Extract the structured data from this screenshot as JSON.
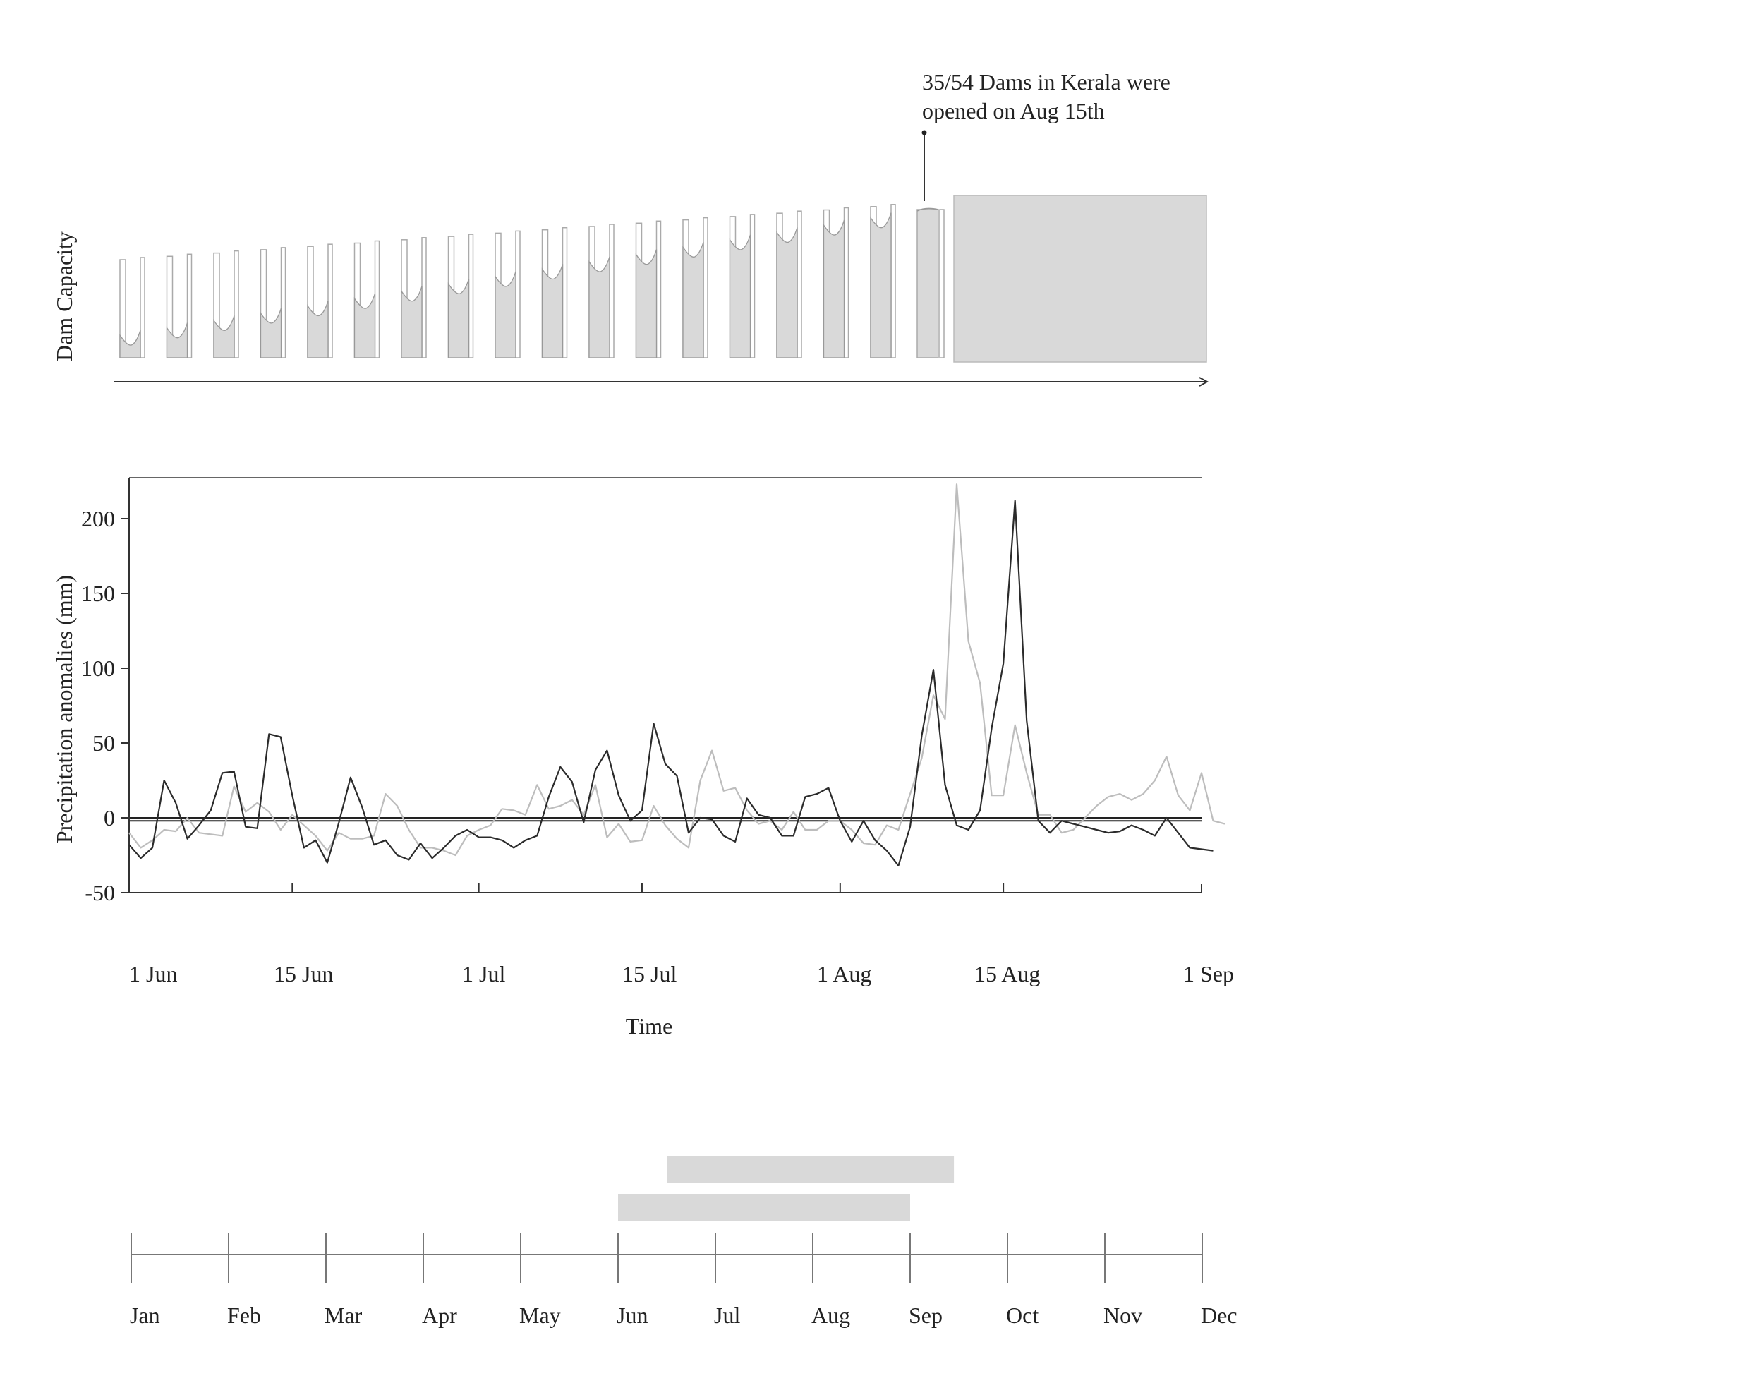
{
  "annotation": {
    "line1": "35/54 Dams in Kerala were",
    "line2": "opened on Aug 15th"
  },
  "dam_panel": {
    "ylabel": "Dam Capacity",
    "fill_color": "#d9d9d9"
  },
  "chart_data": [
    {
      "type": "line",
      "xlabel": "Time",
      "ylabel": "Precipitation anomalies (mm)",
      "ylim": [
        -50,
        230
      ],
      "yticks": [
        "-50",
        "0",
        "50",
        "100",
        "150",
        "200"
      ],
      "xlim": [
        "2018-06-01",
        "2018-09-01"
      ],
      "xtick_labels": [
        "1 Jun",
        "15 Jun",
        "1 Jul",
        "15 Jul",
        "1 Aug",
        "15 Aug",
        "1 Sep"
      ],
      "xtick_dates": [
        "2018-06-01",
        "2018-06-15",
        "2018-07-01",
        "2018-07-15",
        "2018-08-01",
        "2018-08-15",
        "2018-09-01"
      ],
      "reference_lines": [
        0,
        -2
      ],
      "series": [
        {
          "color": "#bdbdbd",
          "points": [
            [
              "2018-06-01",
              -10
            ],
            [
              "2018-06-02",
              -20
            ],
            [
              "2018-06-03",
              -15
            ],
            [
              "2018-06-04",
              -8
            ],
            [
              "2018-06-05",
              -9
            ],
            [
              "2018-06-06",
              0
            ],
            [
              "2018-06-07",
              -10
            ],
            [
              "2018-06-08",
              -11
            ],
            [
              "2018-06-09",
              -12
            ],
            [
              "2018-06-10",
              21
            ],
            [
              "2018-06-11",
              4
            ],
            [
              "2018-06-12",
              10
            ],
            [
              "2018-06-13",
              4
            ],
            [
              "2018-06-14",
              -8
            ],
            [
              "2018-06-15",
              2
            ],
            [
              "2018-06-16",
              -5
            ],
            [
              "2018-06-17",
              -12
            ],
            [
              "2018-06-18",
              -22
            ],
            [
              "2018-06-19",
              -10
            ],
            [
              "2018-06-20",
              -14
            ],
            [
              "2018-06-21",
              -14
            ],
            [
              "2018-06-22",
              -12
            ],
            [
              "2018-06-23",
              16
            ],
            [
              "2018-06-24",
              8
            ],
            [
              "2018-06-25",
              -8
            ],
            [
              "2018-06-26",
              -20
            ],
            [
              "2018-06-27",
              -20
            ],
            [
              "2018-06-28",
              -22
            ],
            [
              "2018-06-29",
              -25
            ],
            [
              "2018-06-30",
              -12
            ],
            [
              "2018-07-01",
              -8
            ],
            [
              "2018-07-02",
              -5
            ],
            [
              "2018-07-03",
              6
            ],
            [
              "2018-07-04",
              5
            ],
            [
              "2018-07-05",
              2
            ],
            [
              "2018-07-06",
              22
            ],
            [
              "2018-07-07",
              6
            ],
            [
              "2018-07-08",
              8
            ],
            [
              "2018-07-09",
              12
            ],
            [
              "2018-07-10",
              2
            ],
            [
              "2018-07-11",
              22
            ],
            [
              "2018-07-12",
              -13
            ],
            [
              "2018-07-13",
              -4
            ],
            [
              "2018-07-14",
              -16
            ],
            [
              "2018-07-15",
              -15
            ],
            [
              "2018-07-16",
              8
            ],
            [
              "2018-07-17",
              -5
            ],
            [
              "2018-07-18",
              -14
            ],
            [
              "2018-07-19",
              -20
            ],
            [
              "2018-07-20",
              25
            ],
            [
              "2018-07-21",
              45
            ],
            [
              "2018-07-22",
              18
            ],
            [
              "2018-07-23",
              20
            ],
            [
              "2018-07-24",
              5
            ],
            [
              "2018-07-25",
              -4
            ],
            [
              "2018-07-26",
              -2
            ],
            [
              "2018-07-27",
              -8
            ],
            [
              "2018-07-28",
              4
            ],
            [
              "2018-07-29",
              -8
            ],
            [
              "2018-07-30",
              -8
            ],
            [
              "2018-07-31",
              -2
            ],
            [
              "2018-08-01",
              -2
            ],
            [
              "2018-08-02",
              -8
            ],
            [
              "2018-08-03",
              -17
            ],
            [
              "2018-08-04",
              -18
            ],
            [
              "2018-08-05",
              -5
            ],
            [
              "2018-08-06",
              -8
            ],
            [
              "2018-08-07",
              16
            ],
            [
              "2018-08-08",
              40
            ],
            [
              "2018-08-09",
              82
            ],
            [
              "2018-08-10",
              66
            ],
            [
              "2018-08-11",
              223
            ],
            [
              "2018-08-12",
              118
            ],
            [
              "2018-08-13",
              90
            ],
            [
              "2018-08-14",
              15
            ],
            [
              "2018-08-15",
              15
            ],
            [
              "2018-08-16",
              62
            ],
            [
              "2018-08-17",
              30
            ],
            [
              "2018-08-18",
              2
            ],
            [
              "2018-08-19",
              2
            ],
            [
              "2018-08-20",
              -10
            ],
            [
              "2018-08-21",
              -8
            ],
            [
              "2018-08-22",
              0
            ],
            [
              "2018-08-23",
              8
            ],
            [
              "2018-08-24",
              14
            ],
            [
              "2018-08-25",
              16
            ],
            [
              "2018-08-26",
              12
            ],
            [
              "2018-08-27",
              16
            ],
            [
              "2018-08-28",
              25
            ],
            [
              "2018-08-29",
              41
            ],
            [
              "2018-08-30",
              15
            ],
            [
              "2018-08-31",
              5
            ],
            [
              "2018-09-01",
              30
            ],
            [
              "2018-09-02",
              -2
            ],
            [
              "2018-09-03",
              -4
            ]
          ]
        },
        {
          "color": "#2b2b2b",
          "points": [
            [
              "2018-06-01",
              -18
            ],
            [
              "2018-06-02",
              -27
            ],
            [
              "2018-06-03",
              -20
            ],
            [
              "2018-06-04",
              25
            ],
            [
              "2018-06-05",
              10
            ],
            [
              "2018-06-06",
              -14
            ],
            [
              "2018-06-07",
              -5
            ],
            [
              "2018-06-08",
              5
            ],
            [
              "2018-06-09",
              30
            ],
            [
              "2018-06-10",
              31
            ],
            [
              "2018-06-11",
              -6
            ],
            [
              "2018-06-12",
              -7
            ],
            [
              "2018-06-13",
              56
            ],
            [
              "2018-06-14",
              54
            ],
            [
              "2018-06-15",
              15
            ],
            [
              "2018-06-16",
              -20
            ],
            [
              "2018-06-17",
              -15
            ],
            [
              "2018-06-18",
              -30
            ],
            [
              "2018-06-19",
              -3
            ],
            [
              "2018-06-20",
              27
            ],
            [
              "2018-06-21",
              7
            ],
            [
              "2018-06-22",
              -18
            ],
            [
              "2018-06-23",
              -15
            ],
            [
              "2018-06-24",
              -25
            ],
            [
              "2018-06-25",
              -28
            ],
            [
              "2018-06-26",
              -17
            ],
            [
              "2018-06-27",
              -27
            ],
            [
              "2018-06-28",
              -20
            ],
            [
              "2018-06-29",
              -12
            ],
            [
              "2018-06-30",
              -8
            ],
            [
              "2018-07-01",
              -13
            ],
            [
              "2018-07-02",
              -13
            ],
            [
              "2018-07-03",
              -15
            ],
            [
              "2018-07-04",
              -20
            ],
            [
              "2018-07-05",
              -15
            ],
            [
              "2018-07-06",
              -12
            ],
            [
              "2018-07-07",
              14
            ],
            [
              "2018-07-08",
              34
            ],
            [
              "2018-07-09",
              24
            ],
            [
              "2018-07-10",
              -3
            ],
            [
              "2018-07-11",
              32
            ],
            [
              "2018-07-12",
              45
            ],
            [
              "2018-07-13",
              15
            ],
            [
              "2018-07-14",
              -2
            ],
            [
              "2018-07-15",
              5
            ],
            [
              "2018-07-16",
              63
            ],
            [
              "2018-07-17",
              36
            ],
            [
              "2018-07-18",
              28
            ],
            [
              "2018-07-19",
              -10
            ],
            [
              "2018-07-20",
              0
            ],
            [
              "2018-07-21",
              -1
            ],
            [
              "2018-07-22",
              -12
            ],
            [
              "2018-07-23",
              -16
            ],
            [
              "2018-07-24",
              13
            ],
            [
              "2018-07-25",
              2
            ],
            [
              "2018-07-26",
              0
            ],
            [
              "2018-07-27",
              -12
            ],
            [
              "2018-07-28",
              -12
            ],
            [
              "2018-07-29",
              14
            ],
            [
              "2018-07-30",
              16
            ],
            [
              "2018-07-31",
              20
            ],
            [
              "2018-08-01",
              -2
            ],
            [
              "2018-08-02",
              -16
            ],
            [
              "2018-08-03",
              -2
            ],
            [
              "2018-08-04",
              -15
            ],
            [
              "2018-08-05",
              -22
            ],
            [
              "2018-08-06",
              -32
            ],
            [
              "2018-08-07",
              -6
            ],
            [
              "2018-08-08",
              55
            ],
            [
              "2018-08-09",
              99
            ],
            [
              "2018-08-10",
              22
            ],
            [
              "2018-08-11",
              -5
            ],
            [
              "2018-08-12",
              -8
            ],
            [
              "2018-08-13",
              5
            ],
            [
              "2018-08-14",
              60
            ],
            [
              "2018-08-15",
              103
            ],
            [
              "2018-08-16",
              212
            ],
            [
              "2018-08-17",
              65
            ],
            [
              "2018-08-18",
              -2
            ],
            [
              "2018-08-19",
              -10
            ],
            [
              "2018-08-20",
              -2
            ],
            [
              "2018-08-21",
              -4
            ],
            [
              "2018-08-22",
              -6
            ],
            [
              "2018-08-23",
              -8
            ],
            [
              "2018-08-24",
              -10
            ],
            [
              "2018-08-25",
              -9
            ],
            [
              "2018-08-26",
              -5
            ],
            [
              "2018-08-27",
              -8
            ],
            [
              "2018-08-28",
              -12
            ],
            [
              "2018-08-29",
              0
            ],
            [
              "2018-08-30",
              -10
            ],
            [
              "2018-08-31",
              -20
            ],
            [
              "2018-09-01",
              -21
            ],
            [
              "2018-09-02",
              -22
            ]
          ]
        }
      ]
    },
    {
      "type": "timeline",
      "months": [
        "Jan",
        "Feb",
        "Mar",
        "Apr",
        "May",
        "Jun",
        "Jul",
        "Aug",
        "Sep",
        "Oct",
        "Nov",
        "Dec"
      ],
      "bars": [
        {
          "start": 5.5,
          "end": 8.45,
          "color": "#d9d9d9"
        },
        {
          "start": 5.0,
          "end": 8.0,
          "color": "#d9d9d9"
        }
      ]
    }
  ]
}
